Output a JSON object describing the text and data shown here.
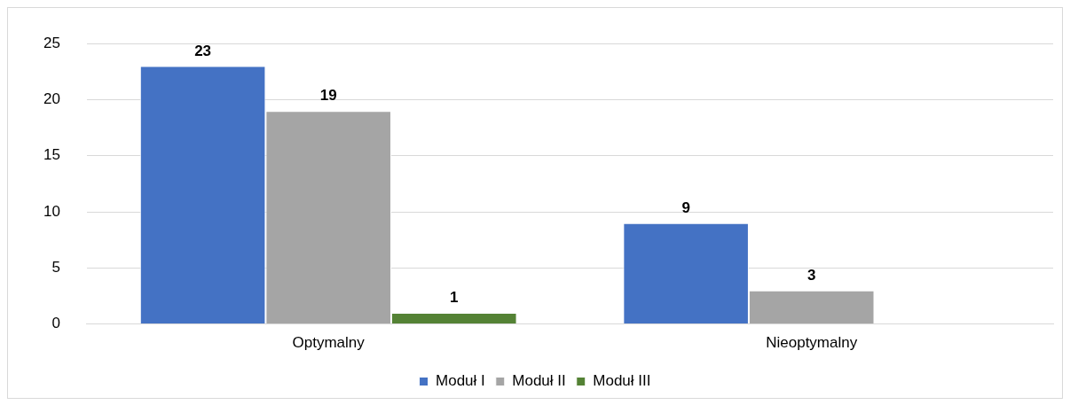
{
  "chart_data": {
    "type": "bar",
    "categories": [
      "Optymalny",
      "Nieoptymalny"
    ],
    "series": [
      {
        "name": "Moduł I",
        "color": "#4472c4",
        "values": [
          23,
          9
        ]
      },
      {
        "name": "Moduł II",
        "color": "#a5a5a5",
        "values": [
          19,
          3
        ]
      },
      {
        "name": "Moduł III",
        "color": "#548235",
        "values": [
          1,
          null
        ]
      }
    ],
    "ylim": [
      0,
      25
    ],
    "yticks": [
      0,
      5,
      10,
      15,
      20,
      25
    ],
    "grid": "y",
    "legend": "bottom",
    "data_labels": true
  }
}
